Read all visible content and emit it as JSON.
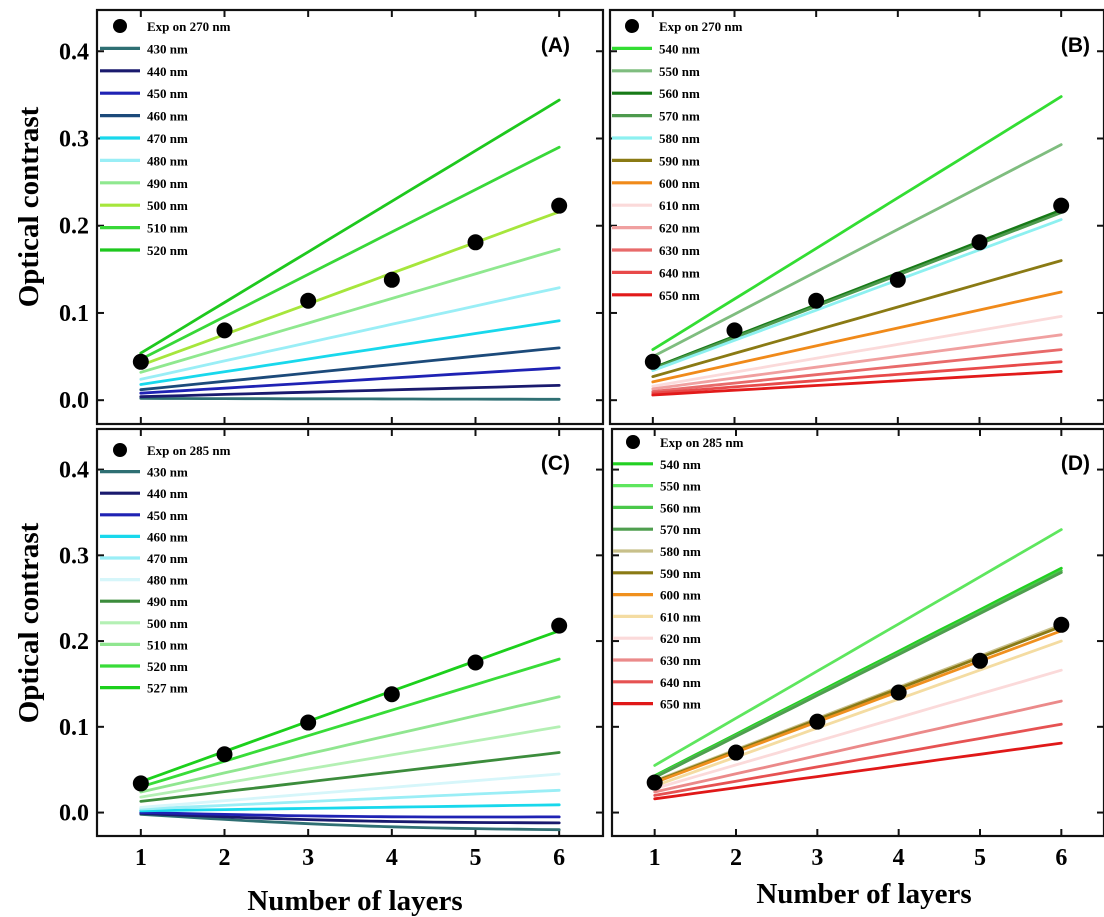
{
  "figure": {
    "ylabel": "Optical contrast",
    "xlabel": "Number of layers"
  },
  "chart_data": [
    {
      "panel": "(A)",
      "type": "line",
      "xlabel": "",
      "ylabel": "Optical contrast",
      "xlim": [
        0.5,
        6.5
      ],
      "ylim": [
        -0.025,
        0.445
      ],
      "xticks": [
        "1",
        "2",
        "3",
        "4",
        "5",
        "6"
      ],
      "yticks": [
        "0.0",
        "0.1",
        "0.2",
        "0.3",
        "0.4"
      ],
      "x": [
        1,
        6
      ],
      "experiment": {
        "name": "Exp on 270 nm",
        "x": [
          1,
          2,
          3,
          4,
          5,
          6
        ],
        "y": [
          0.044,
          0.08,
          0.114,
          0.138,
          0.181,
          0.223
        ]
      },
      "series": [
        {
          "name": "430 nm",
          "color": "#2f6f73",
          "y0": 0.002,
          "y6": 0.001,
          "curve": 0
        },
        {
          "name": "440 nm",
          "color": "#1a1a6e",
          "y0": 0.004,
          "y6": 0.017,
          "curve": 0
        },
        {
          "name": "450 nm",
          "color": "#1f22b4",
          "y0": 0.008,
          "y6": 0.037,
          "curve": 0
        },
        {
          "name": "460 nm",
          "color": "#1c4a7a",
          "y0": 0.012,
          "y6": 0.06,
          "curve": 0
        },
        {
          "name": "470 nm",
          "color": "#18d8ec",
          "y0": 0.018,
          "y6": 0.091,
          "curve": 0
        },
        {
          "name": "480 nm",
          "color": "#9aeef6",
          "y0": 0.024,
          "y6": 0.129,
          "curve": 0
        },
        {
          "name": "490 nm",
          "color": "#8fe88f",
          "y0": 0.032,
          "y6": 0.173,
          "curve": 0
        },
        {
          "name": "500 nm",
          "color": "#a6e63c",
          "y0": 0.04,
          "y6": 0.216,
          "curve": 0
        },
        {
          "name": "510 nm",
          "color": "#38d838",
          "y0": 0.047,
          "y6": 0.29,
          "curve": 0
        },
        {
          "name": "520 nm",
          "color": "#1ec81e",
          "y0": 0.054,
          "y6": 0.344,
          "curve": 0
        }
      ],
      "legend_position": "top-left"
    },
    {
      "panel": "(B)",
      "type": "line",
      "xlabel": "",
      "ylabel": "",
      "xlim": [
        0.5,
        6.5
      ],
      "ylim": [
        -0.025,
        0.445
      ],
      "xticks": [
        "1",
        "2",
        "3",
        "4",
        "5",
        "6"
      ],
      "yticks": [],
      "x": [
        1,
        6
      ],
      "experiment": {
        "name": "Exp on 270 nm",
        "x": [
          1,
          2,
          3,
          4,
          5,
          6
        ],
        "y": [
          0.044,
          0.08,
          0.114,
          0.138,
          0.181,
          0.223
        ]
      },
      "series": [
        {
          "name": "540 nm",
          "color": "#33dd33",
          "y0": 0.058,
          "y6": 0.348,
          "curve": 0
        },
        {
          "name": "550 nm",
          "color": "#7fbd7f",
          "y0": 0.05,
          "y6": 0.293,
          "curve": 0
        },
        {
          "name": "560 nm",
          "color": "#177a17",
          "y0": 0.037,
          "y6": 0.218,
          "curve": 0
        },
        {
          "name": "570 nm",
          "color": "#4d9a4d",
          "y0": 0.036,
          "y6": 0.215,
          "curve": 0
        },
        {
          "name": "580 nm",
          "color": "#8df0f0",
          "y0": 0.034,
          "y6": 0.207,
          "curve": 0
        },
        {
          "name": "590 nm",
          "color": "#8a7a14",
          "y0": 0.027,
          "y6": 0.16,
          "curve": 0
        },
        {
          "name": "600 nm",
          "color": "#f08a1a",
          "y0": 0.021,
          "y6": 0.124,
          "curve": 0
        },
        {
          "name": "610 nm",
          "color": "#fbdada",
          "y0": 0.016,
          "y6": 0.096,
          "curve": 0
        },
        {
          "name": "620 nm",
          "color": "#f0a0a0",
          "y0": 0.013,
          "y6": 0.075,
          "curve": 0
        },
        {
          "name": "630 nm",
          "color": "#e86a6a",
          "y0": 0.01,
          "y6": 0.058,
          "curve": 0
        },
        {
          "name": "640 nm",
          "color": "#e84a4a",
          "y0": 0.008,
          "y6": 0.044,
          "curve": 0
        },
        {
          "name": "650 nm",
          "color": "#e21a1a",
          "y0": 0.006,
          "y6": 0.033,
          "curve": 0
        }
      ],
      "legend_position": "top-left"
    },
    {
      "panel": "(C)",
      "type": "line",
      "xlabel": "Number of layers",
      "ylabel": "Optical contrast",
      "xlim": [
        0.5,
        6.5
      ],
      "ylim": [
        -0.025,
        0.445
      ],
      "xticks": [
        "1",
        "2",
        "3",
        "4",
        "5",
        "6"
      ],
      "yticks": [
        "0.0",
        "0.1",
        "0.2",
        "0.3",
        "0.4"
      ],
      "x": [
        1,
        6
      ],
      "experiment": {
        "name": "Exp on 285 nm",
        "x": [
          1,
          2,
          3,
          4,
          5,
          6
        ],
        "y": [
          0.034,
          0.068,
          0.105,
          0.138,
          0.175,
          0.218
        ]
      },
      "series": [
        {
          "name": "430 nm",
          "color": "#2f6f73",
          "y0": -0.002,
          "y6": -0.02,
          "curve": -0.004
        },
        {
          "name": "440 nm",
          "color": "#1a1a6e",
          "y0": -0.001,
          "y6": -0.012,
          "curve": -0.003
        },
        {
          "name": "450 nm",
          "color": "#1f22b4",
          "y0": 0.0,
          "y6": -0.005,
          "curve": -0.002
        },
        {
          "name": "460 nm",
          "color": "#18d8ec",
          "y0": 0.002,
          "y6": 0.009,
          "curve": 0
        },
        {
          "name": "470 nm",
          "color": "#9aeef6",
          "y0": 0.004,
          "y6": 0.026,
          "curve": 0
        },
        {
          "name": "480 nm",
          "color": "#d6f6fa",
          "y0": 0.006,
          "y6": 0.045,
          "curve": 0
        },
        {
          "name": "490 nm",
          "color": "#3c8c3c",
          "y0": 0.013,
          "y6": 0.07,
          "curve": 0
        },
        {
          "name": "500 nm",
          "color": "#b4f0b4",
          "y0": 0.018,
          "y6": 0.1,
          "curve": 0
        },
        {
          "name": "510 nm",
          "color": "#90e690",
          "y0": 0.024,
          "y6": 0.135,
          "curve": 0
        },
        {
          "name": "520 nm",
          "color": "#38dc38",
          "y0": 0.03,
          "y6": 0.179,
          "curve": 0
        },
        {
          "name": "527 nm",
          "color": "#1cd01c",
          "y0": 0.036,
          "y6": 0.212,
          "curve": 0
        }
      ],
      "legend_position": "top-left"
    },
    {
      "panel": "(D)",
      "type": "line",
      "xlabel": "Number of layers",
      "ylabel": "",
      "xlim": [
        0.5,
        6.5
      ],
      "ylim": [
        -0.025,
        0.445
      ],
      "xticks": [
        "1",
        "2",
        "3",
        "4",
        "5",
        "6"
      ],
      "yticks": [],
      "x": [
        1,
        6
      ],
      "experiment": {
        "name": "Exp on 285 nm",
        "x": [
          1,
          2,
          3,
          4,
          5,
          6
        ],
        "y": [
          0.035,
          0.07,
          0.106,
          0.14,
          0.177,
          0.219
        ]
      },
      "series": [
        {
          "name": "540 nm",
          "color": "#22d022",
          "y0": 0.043,
          "y6": 0.285,
          "curve": 0
        },
        {
          "name": "550 nm",
          "color": "#5ee65e",
          "y0": 0.055,
          "y6": 0.33,
          "curve": 0
        },
        {
          "name": "560 nm",
          "color": "#4ac84a",
          "y0": 0.042,
          "y6": 0.282,
          "curve": 0
        },
        {
          "name": "570 nm",
          "color": "#4f9e4f",
          "y0": 0.041,
          "y6": 0.28,
          "curve": 0
        },
        {
          "name": "580 nm",
          "color": "#c8c08a",
          "y0": 0.037,
          "y6": 0.219,
          "curve": 0
        },
        {
          "name": "590 nm",
          "color": "#8a7a14",
          "y0": 0.036,
          "y6": 0.217,
          "curve": 0
        },
        {
          "name": "600 nm",
          "color": "#f0901e",
          "y0": 0.035,
          "y6": 0.212,
          "curve": 0
        },
        {
          "name": "610 nm",
          "color": "#f4dca2",
          "y0": 0.031,
          "y6": 0.2,
          "curve": 0
        },
        {
          "name": "620 nm",
          "color": "#fbdada",
          "y0": 0.028,
          "y6": 0.166,
          "curve": 0
        },
        {
          "name": "630 nm",
          "color": "#eb8a8a",
          "y0": 0.024,
          "y6": 0.13,
          "curve": 0
        },
        {
          "name": "640 nm",
          "color": "#e65252",
          "y0": 0.02,
          "y6": 0.103,
          "curve": 0
        },
        {
          "name": "650 nm",
          "color": "#e01818",
          "y0": 0.016,
          "y6": 0.081,
          "curve": 0
        }
      ],
      "legend_position": "top-left"
    }
  ]
}
